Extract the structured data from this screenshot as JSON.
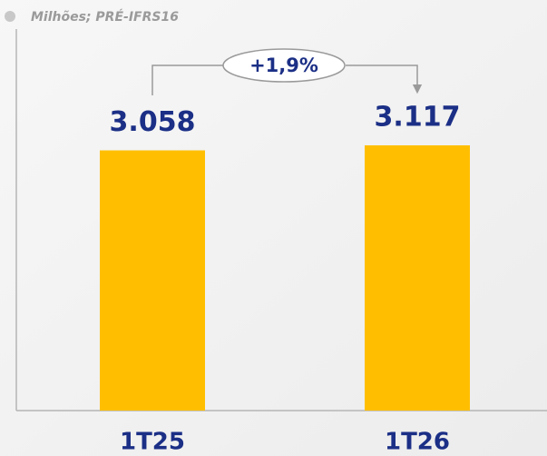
{
  "chart_data": {
    "type": "bar",
    "subtitle": "Milhões; PRÉ-IFRS16",
    "categories": [
      "1T25",
      "1T26"
    ],
    "values": [
      3058,
      3117
    ],
    "value_labels": [
      "3.058",
      "3.117"
    ],
    "color": "#ffbf00",
    "annotation": "+1,9%"
  }
}
